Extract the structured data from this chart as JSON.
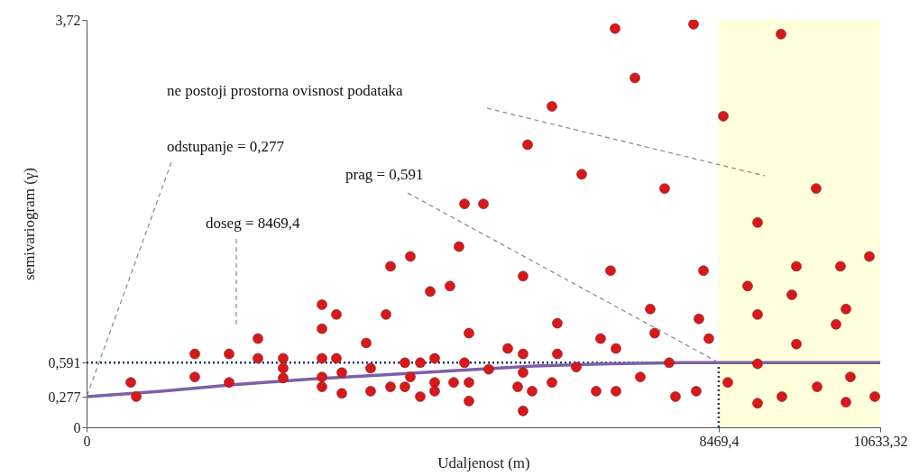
{
  "chart_data": {
    "type": "scatter",
    "xlabel": "Udaljenost (m)",
    "ylabel": "semivariogram (γ)",
    "xlim": [
      0,
      10633.32
    ],
    "ylim": [
      0,
      3.72
    ],
    "xticks": [
      0,
      {
        "value": 8469.4,
        "label": "8469,4"
      },
      {
        "value": 10633.32,
        "label": "10633,32"
      }
    ],
    "yticks": [
      0,
      {
        "value": 0.277,
        "label": "0,277"
      },
      {
        "value": 0.591,
        "label": "0,591"
      },
      {
        "value": 3.72,
        "label": "3,72"
      }
    ],
    "grid": false,
    "series": [
      {
        "marker": "circle",
        "color": "#d7191c",
        "x": [
          592,
          665,
          1450,
          1450,
          1909,
          1909,
          2296,
          2296,
          2634,
          2634,
          2634,
          3154,
          3347,
          3154,
          3154,
          3347,
          3420,
          3154,
          3154,
          3420,
          3746,
          3806,
          3806,
          4012,
          4072,
          4072,
          4265,
          4265,
          4338,
          4338,
          4471,
          4471,
          4664,
          4664,
          4664,
          4604,
          4869,
          4918,
          4990,
          5063,
          5317,
          5063,
          5123,
          5123,
          5123,
          5389,
          5643,
          5776,
          5848,
          5848,
          5848,
          5848,
          5909,
          5969,
          6235,
          6235,
          6307,
          6307,
          6561,
          6634,
          6827,
          6887,
          7020,
          7081,
          7093,
          7093,
          7347,
          7419,
          7552,
          7612,
          7745,
          7806,
          7890,
          8132,
          8168,
          8204,
          8265,
          8337,
          8531,
          8591,
          8857,
          8990,
          8990,
          8990,
          8990,
          9304,
          9316,
          9449,
          9510,
          9510,
          9775,
          9788,
          10041,
          10101,
          10174,
          10174,
          10234,
          10488,
          10561
        ],
        "values": [
          0.41,
          0.28,
          0.67,
          0.46,
          0.67,
          0.41,
          0.81,
          0.63,
          0.63,
          0.54,
          0.45,
          1.12,
          1.03,
          0.9,
          0.63,
          0.63,
          0.5,
          0.46,
          0.37,
          0.31,
          0.77,
          0.54,
          0.33,
          1.03,
          1.47,
          0.37,
          0.59,
          0.37,
          1.56,
          0.46,
          0.59,
          0.28,
          0.63,
          0.41,
          0.33,
          1.24,
          1.29,
          0.41,
          1.65,
          2.04,
          2.04,
          0.59,
          0.86,
          0.41,
          0.24,
          0.53,
          0.72,
          0.37,
          1.38,
          0.67,
          0.5,
          0.15,
          2.58,
          0.33,
          2.93,
          0.41,
          0.95,
          0.67,
          0.55,
          2.31,
          0.33,
          0.81,
          1.43,
          3.64,
          0.72,
          0.33,
          3.19,
          0.46,
          1.08,
          0.86,
          2.18,
          0.59,
          0.28,
          3.68,
          0.33,
          0.99,
          1.43,
          0.81,
          2.84,
          0.41,
          1.29,
          1.87,
          1.03,
          0.58,
          0.22,
          3.59,
          0.28,
          1.21,
          1.47,
          0.76,
          2.18,
          0.37,
          0.94,
          1.47,
          1.08,
          0.23,
          0.46,
          1.56,
          0.28
        ]
      },
      {
        "type": "line",
        "color": "#7e60a8",
        "x": [
          0,
          1000,
          2000,
          3000,
          4000,
          5000,
          6000,
          7000,
          8000,
          8469.4,
          10633.32
        ],
        "values": [
          0.28,
          0.33,
          0.39,
          0.44,
          0.48,
          0.52,
          0.56,
          0.58,
          0.59,
          0.59,
          0.59
        ]
      }
    ],
    "bands": [
      {
        "axis": "x",
        "from": 8469.4,
        "to": 10633.32,
        "color": "#ffffdc"
      }
    ],
    "ref_lines": [
      {
        "axis": "y",
        "value": 0.591,
        "color": "#1f3864",
        "line_style": "dotted"
      },
      {
        "axis": "x",
        "value": 8469.4,
        "color": "#1f3864",
        "line_style": "dotted"
      }
    ],
    "annotations": [
      "ne postoji prostorna ovisnost podataka",
      {
        "text": "odstupanje = 0,277",
        "x": 0,
        "y": 0.277
      },
      {
        "text": "prag = 0,591",
        "x": 8469.4,
        "y": 0.591
      },
      "doseg = 8469,4"
    ]
  }
}
